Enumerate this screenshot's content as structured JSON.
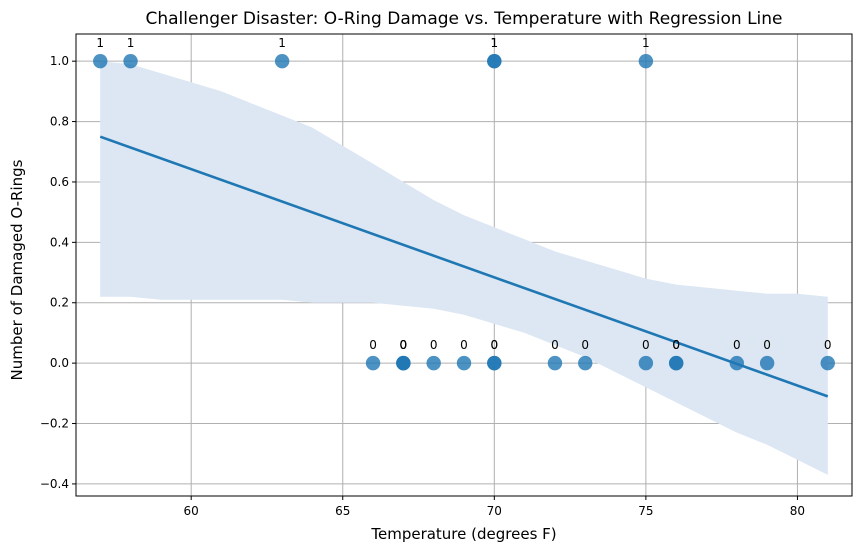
{
  "chart_data": {
    "type": "scatter",
    "title": "Challenger Disaster: O-Ring Damage vs. Temperature with Regression Line",
    "xlabel": "Temperature (degrees F)",
    "ylabel": "Number of Damaged O-Rings",
    "xlim": [
      56.2,
      81.8
    ],
    "ylim": [
      -0.44,
      1.09
    ],
    "xticks": [
      60,
      65,
      70,
      75,
      80
    ],
    "xtick_labels": [
      "60",
      "65",
      "70",
      "75",
      "80"
    ],
    "yticks": [
      -0.4,
      -0.2,
      0.0,
      0.2,
      0.4,
      0.6,
      0.8,
      1.0
    ],
    "ytick_labels": [
      "−0.4",
      "−0.2",
      "0.0",
      "0.2",
      "0.4",
      "0.6",
      "0.8",
      "1.0"
    ],
    "grid": true,
    "points": [
      {
        "x": 57,
        "y": 1,
        "label": "1"
      },
      {
        "x": 58,
        "y": 1,
        "label": "1"
      },
      {
        "x": 63,
        "y": 1,
        "label": "1"
      },
      {
        "x": 70,
        "y": 1,
        "label": "1"
      },
      {
        "x": 70,
        "y": 1,
        "label": "1"
      },
      {
        "x": 75,
        "y": 1,
        "label": "1"
      },
      {
        "x": 66,
        "y": 0,
        "label": "0"
      },
      {
        "x": 67,
        "y": 0,
        "label": "0"
      },
      {
        "x": 67,
        "y": 0,
        "label": "0"
      },
      {
        "x": 67,
        "y": 0,
        "label": "0"
      },
      {
        "x": 68,
        "y": 0,
        "label": "0"
      },
      {
        "x": 69,
        "y": 0,
        "label": "0"
      },
      {
        "x": 70,
        "y": 0,
        "label": "0"
      },
      {
        "x": 70,
        "y": 0,
        "label": "0"
      },
      {
        "x": 72,
        "y": 0,
        "label": "0"
      },
      {
        "x": 73,
        "y": 0,
        "label": "0"
      },
      {
        "x": 75,
        "y": 0,
        "label": "0"
      },
      {
        "x": 76,
        "y": 0,
        "label": "0"
      },
      {
        "x": 76,
        "y": 0,
        "label": "0"
      },
      {
        "x": 78,
        "y": 0,
        "label": "0"
      },
      {
        "x": 79,
        "y": 0,
        "label": "0"
      },
      {
        "x": 81,
        "y": 0,
        "label": "0"
      }
    ],
    "regression_line": {
      "x": [
        57,
        81
      ],
      "y": [
        0.75,
        -0.11
      ]
    },
    "confidence_band": {
      "x": [
        57,
        58,
        59,
        60,
        61,
        62,
        63,
        64,
        65,
        66,
        67,
        68,
        69,
        70,
        71,
        72,
        73,
        74,
        75,
        76,
        77,
        78,
        79,
        80,
        81
      ],
      "upper": [
        1.0,
        0.99,
        0.96,
        0.93,
        0.9,
        0.86,
        0.82,
        0.78,
        0.72,
        0.66,
        0.6,
        0.54,
        0.49,
        0.45,
        0.41,
        0.37,
        0.34,
        0.31,
        0.28,
        0.26,
        0.25,
        0.24,
        0.23,
        0.23,
        0.22
      ],
      "lower": [
        0.22,
        0.22,
        0.21,
        0.21,
        0.21,
        0.21,
        0.21,
        0.2,
        0.2,
        0.2,
        0.19,
        0.18,
        0.16,
        0.13,
        0.1,
        0.06,
        0.02,
        -0.03,
        -0.08,
        -0.13,
        -0.18,
        -0.23,
        -0.27,
        -0.32,
        -0.37
      ]
    },
    "colors": {
      "point": "#1f77b4",
      "line": "#1f77b4",
      "band": "#dce7f3",
      "grid": "#b0b0b0"
    }
  }
}
